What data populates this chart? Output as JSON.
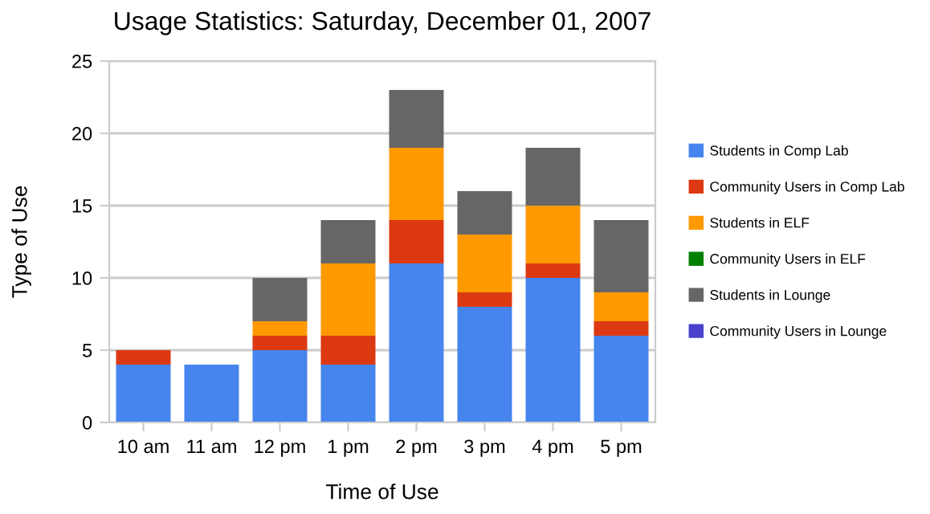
{
  "chart_data": {
    "type": "bar",
    "stacked": true,
    "title": "Usage Statistics: Saturday, December 01, 2007",
    "xlabel": "Time of Use",
    "ylabel": "Type of Use",
    "categories": [
      "10 am",
      "11 am",
      "12 pm",
      "1 pm",
      "2 pm",
      "3 pm",
      "4 pm",
      "5 pm"
    ],
    "series": [
      {
        "name": "Students in Comp Lab",
        "color": "#4684ee",
        "values": [
          4,
          4,
          5,
          4,
          11,
          8,
          10,
          6
        ]
      },
      {
        "name": "Community Users in Comp Lab",
        "color": "#dc3912",
        "values": [
          1,
          0,
          1,
          2,
          3,
          1,
          1,
          1
        ]
      },
      {
        "name": "Students in ELF",
        "color": "#ff9900",
        "values": [
          0,
          0,
          1,
          5,
          5,
          4,
          4,
          2
        ]
      },
      {
        "name": "Community Users in ELF",
        "color": "#008000",
        "values": [
          0,
          0,
          0,
          0,
          0,
          0,
          0,
          0
        ]
      },
      {
        "name": "Students in Lounge",
        "color": "#666666",
        "values": [
          0,
          0,
          3,
          3,
          4,
          3,
          4,
          5
        ]
      },
      {
        "name": "Community Users in Lounge",
        "color": "#4942cc",
        "values": [
          0,
          0,
          0,
          0,
          0,
          0,
          0,
          0
        ]
      }
    ],
    "ylim": [
      0,
      25
    ],
    "yticks": [
      0,
      5,
      10,
      15,
      20,
      25
    ],
    "grid": "y",
    "legend": "right"
  }
}
